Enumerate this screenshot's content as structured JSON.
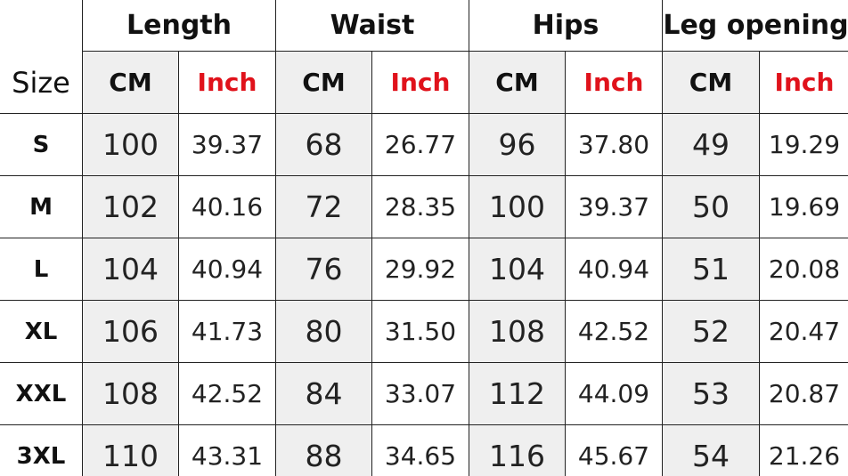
{
  "table": {
    "headers": [
      "Length",
      "Waist",
      "Hips",
      "Leg opening"
    ],
    "size_header": "Size",
    "subheaders": [
      "CM",
      "Inch",
      "CM",
      "Inch",
      "CM",
      "Inch",
      "CM",
      "Inch"
    ],
    "rows": [
      [
        "S",
        "100",
        "39.37",
        "68",
        "26.77",
        "96",
        "37.80",
        "49",
        "19.29"
      ],
      [
        "M",
        "102",
        "40.16",
        "72",
        "28.35",
        "100",
        "39.37",
        "50",
        "19.69"
      ],
      [
        "L",
        "104",
        "40.94",
        "76",
        "29.92",
        "104",
        "40.94",
        "51",
        "20.08"
      ],
      [
        "XL",
        "106",
        "41.73",
        "80",
        "31.50",
        "108",
        "42.52",
        "52",
        "20.47"
      ],
      [
        "XXL",
        "108",
        "42.52",
        "84",
        "33.07",
        "112",
        "44.09",
        "53",
        "20.87"
      ],
      [
        "3XL",
        "110",
        "43.31",
        "88",
        "34.65",
        "116",
        "45.67",
        "54",
        "21.26"
      ]
    ]
  }
}
